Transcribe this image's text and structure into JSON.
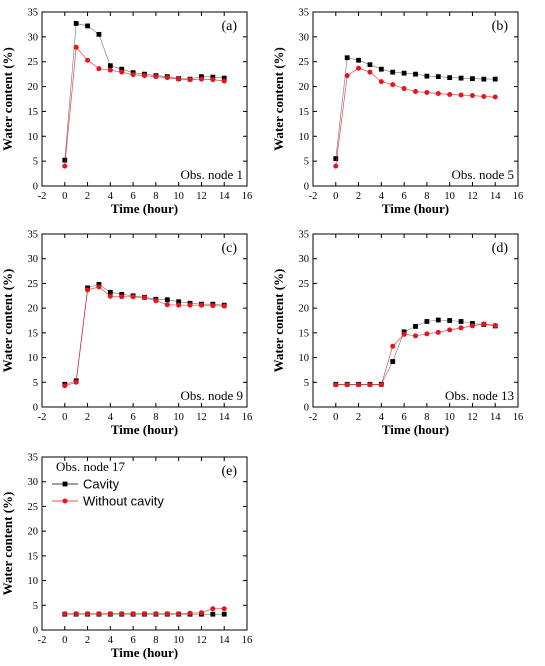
{
  "colors": {
    "cavity": "#000000",
    "without_cavity": "#e8141b",
    "axis": "#000000"
  },
  "chart_data": [
    {
      "type": "line",
      "panel": "(a)",
      "annotation": "Obs. node 1",
      "xlabel": "Time (hour)",
      "ylabel": "Water content (%)",
      "xlim": [
        -2,
        16
      ],
      "ylim": [
        0,
        35
      ],
      "xticks": [
        -2,
        0,
        2,
        4,
        6,
        8,
        10,
        12,
        14,
        16
      ],
      "yticks": [
        0,
        5,
        10,
        15,
        20,
        25,
        30,
        35
      ],
      "x": [
        0,
        1,
        2,
        3,
        4,
        5,
        6,
        7,
        8,
        9,
        10,
        11,
        12,
        13,
        14
      ],
      "series": [
        {
          "values": [
            5.2,
            32.7,
            32.2,
            30.5,
            24.2,
            23.5,
            22.8,
            22.5,
            22.2,
            22.0,
            21.6,
            21.5,
            22.0,
            21.9,
            21.7
          ]
        },
        {
          "values": [
            4.0,
            27.9,
            25.3,
            23.6,
            23.3,
            22.9,
            22.4,
            22.2,
            22.0,
            21.8,
            21.5,
            21.4,
            21.5,
            21.4,
            21.1
          ]
        }
      ]
    },
    {
      "type": "line",
      "panel": "(b)",
      "annotation": "Obs. node 5",
      "xlabel": "Time (hour)",
      "ylabel": "Water content (%)",
      "xlim": [
        -2,
        16
      ],
      "ylim": [
        0,
        35
      ],
      "xticks": [
        -2,
        0,
        2,
        4,
        6,
        8,
        10,
        12,
        14,
        16
      ],
      "yticks": [
        0,
        5,
        10,
        15,
        20,
        25,
        30,
        35
      ],
      "x": [
        0,
        1,
        2,
        3,
        4,
        5,
        6,
        7,
        8,
        9,
        10,
        11,
        12,
        13,
        14
      ],
      "series": [
        {
          "values": [
            5.5,
            25.8,
            25.3,
            24.4,
            23.5,
            22.9,
            22.7,
            22.5,
            22.1,
            22.0,
            21.8,
            21.7,
            21.6,
            21.5,
            21.5
          ]
        },
        {
          "values": [
            4.0,
            22.2,
            23.7,
            22.9,
            21.0,
            20.4,
            19.6,
            19.0,
            18.8,
            18.6,
            18.4,
            18.3,
            18.2,
            18.0,
            17.9
          ]
        }
      ]
    },
    {
      "type": "line",
      "panel": "(c)",
      "annotation": "Obs. node 9",
      "xlabel": "Time (hour)",
      "ylabel": "Water content (%)",
      "xlim": [
        -2,
        16
      ],
      "ylim": [
        0,
        35
      ],
      "xticks": [
        -2,
        0,
        2,
        4,
        6,
        8,
        10,
        12,
        14,
        16
      ],
      "yticks": [
        0,
        5,
        10,
        15,
        20,
        25,
        30,
        35
      ],
      "x": [
        0,
        1,
        2,
        3,
        4,
        5,
        6,
        7,
        8,
        9,
        10,
        11,
        12,
        13,
        14
      ],
      "series": [
        {
          "values": [
            4.6,
            5.3,
            24.1,
            24.8,
            23.2,
            22.8,
            22.5,
            22.2,
            21.8,
            21.7,
            21.3,
            21.0,
            20.8,
            20.8,
            20.6
          ]
        },
        {
          "values": [
            4.3,
            5.0,
            23.7,
            24.3,
            22.4,
            22.3,
            22.3,
            22.1,
            21.5,
            20.7,
            20.6,
            20.6,
            20.6,
            20.5,
            20.4
          ]
        }
      ]
    },
    {
      "type": "line",
      "panel": "(d)",
      "annotation": "Obs. node 13",
      "xlabel": "Time (hour)",
      "ylabel": "Water content (%)",
      "xlim": [
        -2,
        16
      ],
      "ylim": [
        0,
        35
      ],
      "xticks": [
        -2,
        0,
        2,
        4,
        6,
        8,
        10,
        12,
        14,
        16
      ],
      "yticks": [
        0,
        5,
        10,
        15,
        20,
        25,
        30,
        35
      ],
      "x": [
        0,
        1,
        2,
        3,
        4,
        5,
        6,
        7,
        8,
        9,
        10,
        11,
        12,
        13,
        14
      ],
      "series": [
        {
          "values": [
            4.6,
            4.6,
            4.6,
            4.6,
            4.6,
            9.2,
            15.2,
            16.3,
            17.3,
            17.6,
            17.5,
            17.3,
            16.9,
            16.7,
            16.4
          ]
        },
        {
          "values": [
            4.5,
            4.5,
            4.5,
            4.5,
            4.5,
            12.3,
            14.7,
            14.4,
            14.8,
            15.1,
            15.6,
            16.0,
            16.4,
            16.8,
            16.5
          ]
        }
      ]
    },
    {
      "type": "line",
      "panel": "(e)",
      "legend_title": "Obs. node 17",
      "xlabel": "Time (hour)",
      "ylabel": "Water content (%)",
      "xlim": [
        -2,
        16
      ],
      "ylim": [
        0,
        35
      ],
      "xticks": [
        -2,
        0,
        2,
        4,
        6,
        8,
        10,
        12,
        14,
        16
      ],
      "yticks": [
        0,
        5,
        10,
        15,
        20,
        25,
        30,
        35
      ],
      "legend_position": "top-left",
      "x": [
        0,
        1,
        2,
        3,
        4,
        5,
        6,
        7,
        8,
        9,
        10,
        11,
        12,
        13,
        14
      ],
      "series": [
        {
          "name": "Cavity",
          "values": [
            3.2,
            3.2,
            3.2,
            3.2,
            3.2,
            3.2,
            3.2,
            3.2,
            3.2,
            3.2,
            3.2,
            3.2,
            3.2,
            3.2,
            3.2
          ]
        },
        {
          "name": "Without cavity",
          "values": [
            3.3,
            3.3,
            3.3,
            3.3,
            3.3,
            3.3,
            3.3,
            3.3,
            3.3,
            3.3,
            3.3,
            3.4,
            3.5,
            4.3,
            4.3
          ]
        }
      ]
    }
  ]
}
